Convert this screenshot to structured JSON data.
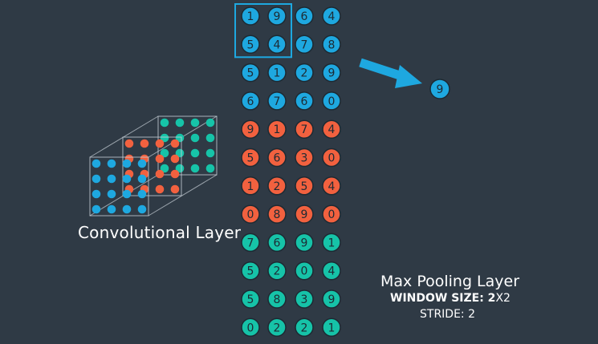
{
  "colors": {
    "background": "#2f3a45",
    "blue": "#1ea8e0",
    "orange": "#f2613f",
    "teal": "#16c3a8",
    "circle_stroke": "#1d2a33",
    "window_stroke": "#1ea8e0",
    "cube_line": "#c9d1d8"
  },
  "matrix": {
    "rows": [
      {
        "color": "blue",
        "values": [
          1,
          9,
          6,
          4
        ]
      },
      {
        "color": "blue",
        "values": [
          5,
          4,
          7,
          8
        ]
      },
      {
        "color": "blue",
        "values": [
          5,
          1,
          2,
          9
        ]
      },
      {
        "color": "blue",
        "values": [
          6,
          7,
          6,
          0
        ]
      },
      {
        "color": "orange",
        "values": [
          9,
          1,
          7,
          4
        ]
      },
      {
        "color": "orange",
        "values": [
          5,
          6,
          3,
          0
        ]
      },
      {
        "color": "orange",
        "values": [
          1,
          2,
          5,
          4
        ]
      },
      {
        "color": "orange",
        "values": [
          0,
          8,
          9,
          0
        ]
      },
      {
        "color": "teal",
        "values": [
          7,
          6,
          9,
          1
        ]
      },
      {
        "color": "teal",
        "values": [
          5,
          2,
          0,
          4
        ]
      },
      {
        "color": "teal",
        "values": [
          5,
          8,
          3,
          9
        ]
      },
      {
        "color": "teal",
        "values": [
          0,
          2,
          2,
          1
        ]
      }
    ],
    "window": {
      "rows": [
        0,
        1
      ],
      "cols": [
        0,
        1
      ]
    }
  },
  "output": {
    "value": "9",
    "color": "blue"
  },
  "arrow_icon": "arrow-right-down-icon",
  "conv_layer": {
    "label": "Convolutional Layer",
    "layers": [
      "blue",
      "orange",
      "teal"
    ],
    "dots_per_side": 4
  },
  "pooling": {
    "title": "Max Pooling Layer",
    "window_label": "WINDOW SIZE: 2",
    "window_suffix": "X2",
    "stride_label": "STRIDE: 2"
  }
}
